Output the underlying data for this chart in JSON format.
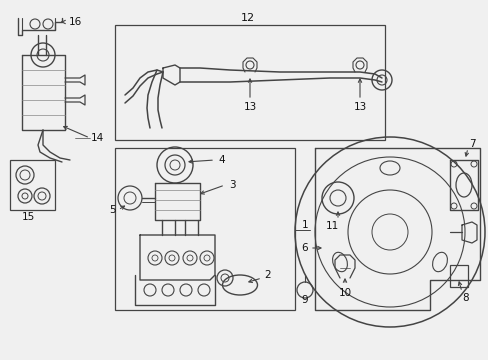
{
  "bg_color": "#f0f0f0",
  "line_color": "#444444",
  "fig_width": 4.89,
  "fig_height": 3.6,
  "dpi": 100,
  "xlim": [
    0,
    489
  ],
  "ylim": [
    0,
    360
  ]
}
